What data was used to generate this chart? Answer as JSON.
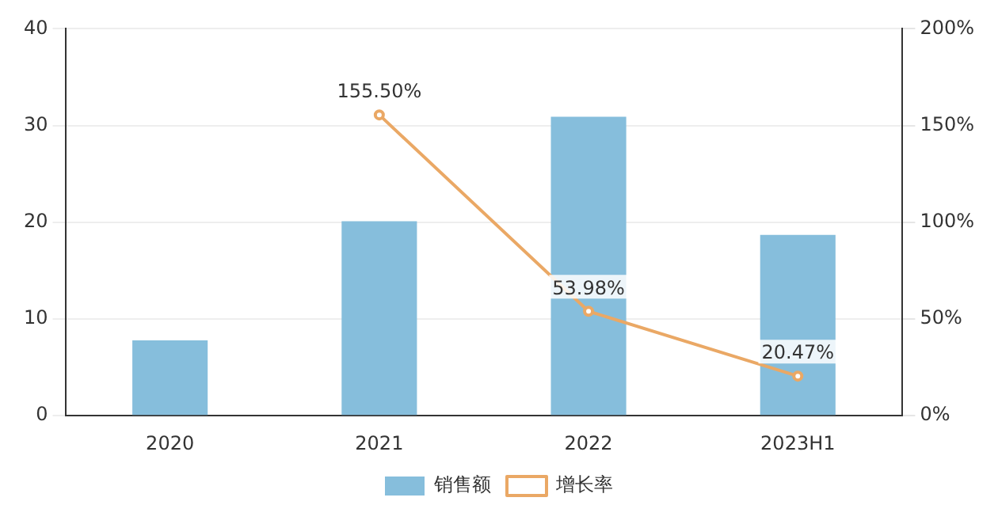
{
  "chart_data": {
    "type": "bar",
    "categories": [
      "2020",
      "2021",
      "2022",
      "2023H1"
    ],
    "series": [
      {
        "name": "销售额",
        "color": "#86bedc",
        "values": [
          7.8,
          20.1,
          30.9,
          18.7
        ]
      },
      {
        "name": "增长率",
        "type": "line",
        "axis": "y2",
        "color": "#eaa865",
        "values": [
          null,
          155.5,
          53.98,
          20.47
        ],
        "value_labels": [
          null,
          "155.50%",
          "53.98%",
          "20.47%"
        ]
      }
    ],
    "ylim": [
      0,
      40
    ],
    "yticks": [
      0,
      10,
      20,
      30,
      40
    ],
    "y2lim": [
      0,
      200
    ],
    "y2ticks": [
      {
        "value": 0,
        "label": "0%"
      },
      {
        "value": 50,
        "label": "50%"
      },
      {
        "value": 100,
        "label": "100%"
      },
      {
        "value": 150,
        "label": "150%"
      },
      {
        "value": 200,
        "label": "200%"
      }
    ],
    "grid": "y",
    "legend": "bottom",
    "marker": "circle"
  }
}
